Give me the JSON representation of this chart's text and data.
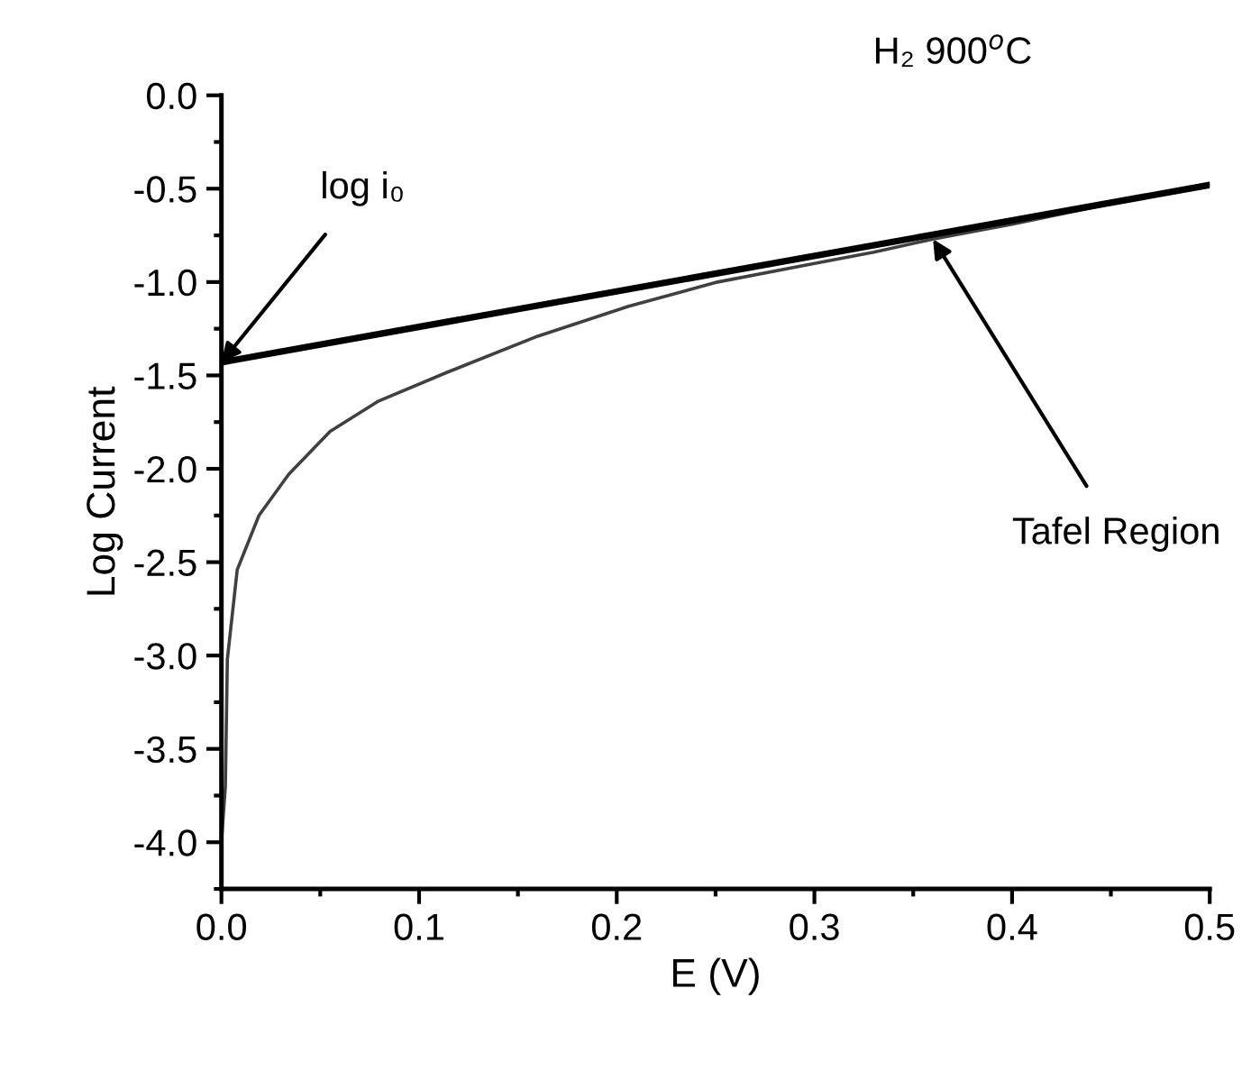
{
  "chart_data": {
    "type": "line",
    "title": "H₂ 900$^{o}$C",
    "xlabel": "E (V)",
    "ylabel": "Log Current",
    "xlim": [
      0.0,
      0.5
    ],
    "xticks": [
      {
        "value": 0.0,
        "label": "0.0"
      },
      0.1,
      0.2,
      0.3,
      0.4,
      0.5
    ],
    "ylim": [
      -4.25,
      0.0
    ],
    "yticks": [
      {
        "value": 0.0,
        "label": "0.0"
      },
      -0.5,
      {
        "value": -1.0,
        "label": "-1.0"
      },
      -1.5,
      {
        "value": -2.0,
        "label": "-2.0"
      },
      -2.5,
      {
        "value": -3.0,
        "label": "-3.0"
      },
      -3.5,
      {
        "value": -4.0,
        "label": "-4.0"
      }
    ],
    "grid": false,
    "legend": false,
    "marker": "none",
    "line_style": "solid",
    "series": [
      {
        "color": "#404040",
        "x": [
          0.0,
          0.001,
          0.002,
          0.003,
          0.008,
          0.019,
          0.034,
          0.055,
          0.079,
          0.115,
          0.16,
          0.206,
          0.251,
          0.3,
          0.33,
          0.36,
          0.4,
          0.45,
          0.5
        ],
        "values": [
          -4.0,
          -3.85,
          -3.7,
          -3.02,
          -2.54,
          -2.25,
          -2.03,
          -1.8,
          -1.64,
          -1.48,
          -1.29,
          -1.13,
          -1.0,
          -0.9,
          -0.84,
          -0.77,
          -0.69,
          -0.58,
          -0.48
        ]
      },
      {
        "color": "#000000",
        "x": [
          0.0,
          0.5
        ],
        "values": [
          -1.43,
          -0.48
        ]
      }
    ],
    "annotations": [
      {
        "text": "log i₀",
        "x": 0.0,
        "y": -1.43
      },
      {
        "text": "Tafel Region",
        "x": 0.36,
        "y": -0.77
      }
    ]
  }
}
